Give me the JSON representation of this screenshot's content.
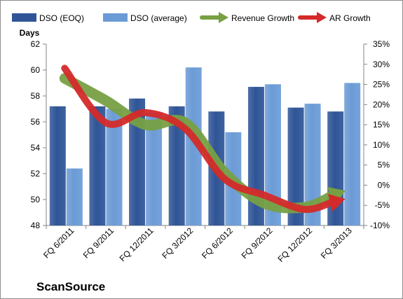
{
  "chart_data": {
    "type": "bar",
    "title": "",
    "categories": [
      "FQ 6/2011",
      "FQ 9/2011",
      "FQ 12/2011",
      "FQ 3/2012",
      "FQ 6/2012",
      "FQ 9/2012",
      "FQ 12/2012",
      "FQ 3/2013"
    ],
    "y_left": {
      "label": "Days",
      "min": 48,
      "max": 62,
      "step": 2
    },
    "y_right": {
      "label": "",
      "min": -10,
      "max": 35,
      "step": 5,
      "unit": "%"
    },
    "series": [
      {
        "name": "DSO (EOQ)",
        "kind": "bar",
        "axis": "left",
        "color": "#2f5597",
        "values": [
          57.2,
          57.2,
          57.8,
          57.2,
          56.8,
          58.7,
          57.1,
          56.8
        ]
      },
      {
        "name": "DSO (average)",
        "kind": "bar",
        "axis": "left",
        "color": "#6b9bd6",
        "values": [
          52.4,
          57.0,
          56.7,
          60.2,
          55.2,
          58.9,
          57.4,
          59.0
        ]
      },
      {
        "name": "Revenue Growth",
        "kind": "arrow-line",
        "axis": "right",
        "color": "#77a043",
        "values": [
          26.5,
          21.0,
          15.0,
          15.5,
          3.0,
          -4.5,
          -5.5,
          -1.5
        ]
      },
      {
        "name": "AR Growth",
        "kind": "arrow-line",
        "axis": "right",
        "color": "#d42a2a",
        "values": [
          29.0,
          15.5,
          18.0,
          14.0,
          1.5,
          -2.5,
          -6.0,
          -3.5
        ]
      }
    ],
    "grid": false,
    "legend_position": "top",
    "watermark": "ScanSource"
  }
}
